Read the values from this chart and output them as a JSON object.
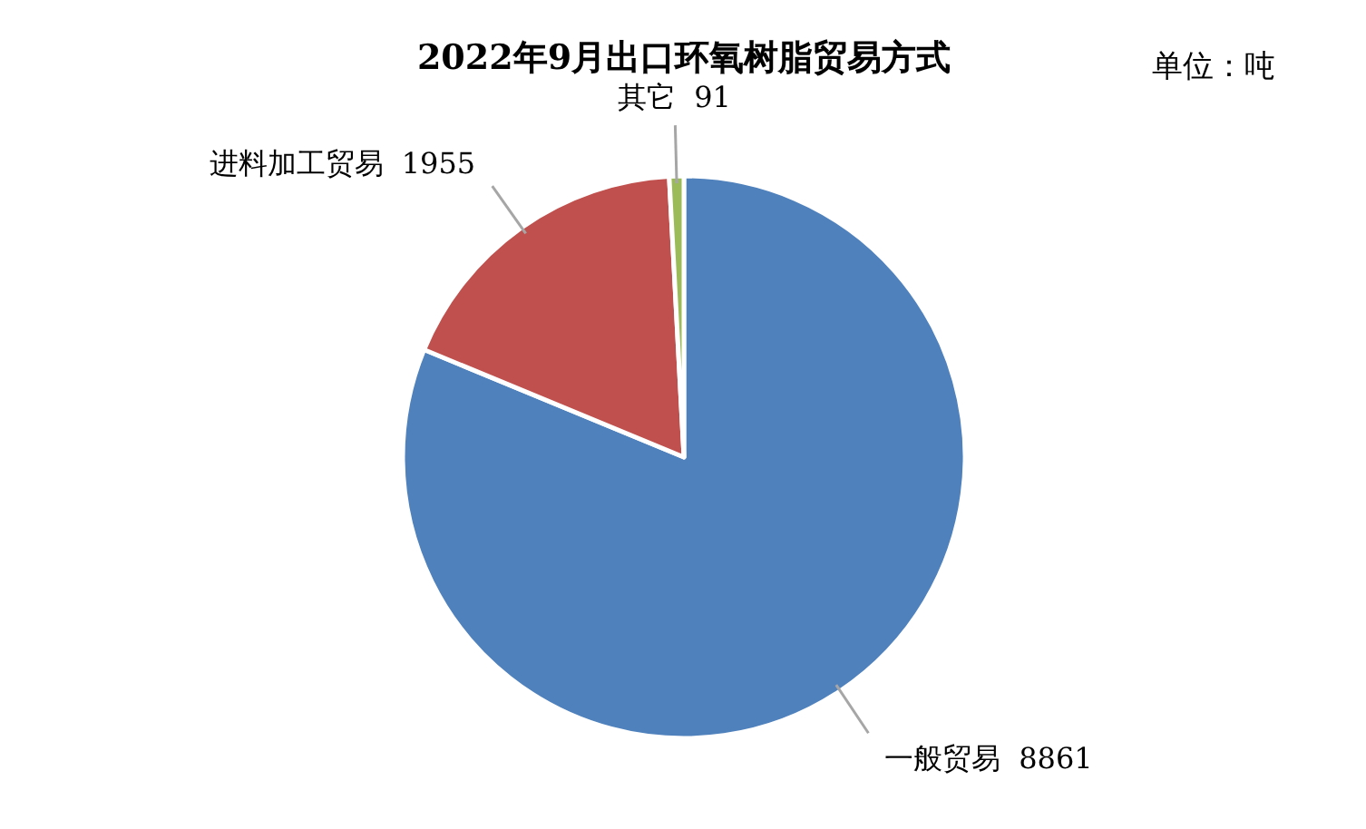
{
  "chart_data": {
    "type": "pie",
    "title": "2022年9月出口环氧树脂贸易方式",
    "annotations": [
      "单位：吨"
    ],
    "categories": [
      "一般贸易",
      "进料加工贸易",
      "其它"
    ],
    "values": [
      8861,
      1955,
      91
    ],
    "colors": [
      "#4f81bd",
      "#c0504d",
      "#9bbb59"
    ],
    "data_labels": true
  }
}
